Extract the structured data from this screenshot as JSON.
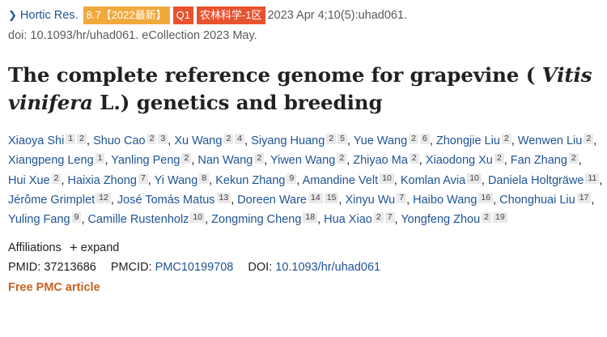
{
  "header": {
    "journal_link": "Hortic Res.",
    "impact_badge": "8.7【2022最新】",
    "quartile_badge": "Q1",
    "zone_badge": "农林科学-1区",
    "citation": "2023 Apr 4;10(5):uhad061.",
    "doi_line": "doi: 10.1093/hr/uhad061. eCollection 2023 May."
  },
  "title": {
    "part1": "The complete reference genome for grapevine (",
    "italic": "Vitis vinifera",
    "part2": "L.) genetics and breeding"
  },
  "authors": [
    {
      "name": "Xiaoya Shi",
      "affil": [
        "1",
        "2"
      ]
    },
    {
      "name": "Shuo Cao",
      "affil": [
        "2",
        "3"
      ]
    },
    {
      "name": "Xu Wang",
      "affil": [
        "2",
        "4"
      ]
    },
    {
      "name": "Siyang Huang",
      "affil": [
        "2",
        "5"
      ]
    },
    {
      "name": "Yue Wang",
      "affil": [
        "2",
        "6"
      ]
    },
    {
      "name": "Zhongjie Liu",
      "affil": [
        "2"
      ]
    },
    {
      "name": "Wenwen Liu",
      "affil": [
        "2"
      ]
    },
    {
      "name": "Xiangpeng Leng",
      "affil": [
        "1"
      ]
    },
    {
      "name": "Yanling Peng",
      "affil": [
        "2"
      ]
    },
    {
      "name": "Nan Wang",
      "affil": [
        "2"
      ]
    },
    {
      "name": "Yiwen Wang",
      "affil": [
        "2"
      ]
    },
    {
      "name": "Zhiyao Ma",
      "affil": [
        "2"
      ]
    },
    {
      "name": "Xiaodong Xu",
      "affil": [
        "2"
      ]
    },
    {
      "name": "Fan Zhang",
      "affil": [
        "2"
      ]
    },
    {
      "name": "Hui Xue",
      "affil": [
        "2"
      ]
    },
    {
      "name": "Haixia Zhong",
      "affil": [
        "7"
      ]
    },
    {
      "name": "Yi Wang",
      "affil": [
        "8"
      ]
    },
    {
      "name": "Kekun Zhang",
      "affil": [
        "9"
      ]
    },
    {
      "name": "Amandine Velt",
      "affil": [
        "10"
      ]
    },
    {
      "name": "Komlan Avia",
      "affil": [
        "10"
      ]
    },
    {
      "name": "Daniela Holtgräwe",
      "affil": [
        "11"
      ]
    },
    {
      "name": "Jérôme Grimplet",
      "affil": [
        "12"
      ]
    },
    {
      "name": "José Tomás Matus",
      "affil": [
        "13"
      ]
    },
    {
      "name": "Doreen Ware",
      "affil": [
        "14",
        "15"
      ]
    },
    {
      "name": "Xinyu Wu",
      "affil": [
        "7"
      ]
    },
    {
      "name": "Haibo Wang",
      "affil": [
        "16"
      ]
    },
    {
      "name": "Chonghuai Liu",
      "affil": [
        "17"
      ]
    },
    {
      "name": "Yuling Fang",
      "affil": [
        "9"
      ]
    },
    {
      "name": "Camille Rustenholz",
      "affil": [
        "10"
      ]
    },
    {
      "name": "Zongming Cheng",
      "affil": [
        "18"
      ]
    },
    {
      "name": "Hua Xiao",
      "affil": [
        "2",
        "7"
      ]
    },
    {
      "name": "Yongfeng Zhou",
      "affil": [
        "2",
        "19"
      ]
    }
  ],
  "affiliations": {
    "label": "Affiliations",
    "expand_icon": "plus-icon",
    "expand_label": "expand"
  },
  "ids": {
    "pmid_label": "PMID:",
    "pmid": "37213686",
    "pmcid_label": "PMCID:",
    "pmcid": "PMC10199708",
    "doi_label": "DOI:",
    "doi": "10.1093/hr/uhad061"
  },
  "free_article": "Free PMC article",
  "colors": {
    "link": "#205493",
    "badge_if": "#f2a93b",
    "badge_q": "#e8532f",
    "free": "#c66322"
  }
}
